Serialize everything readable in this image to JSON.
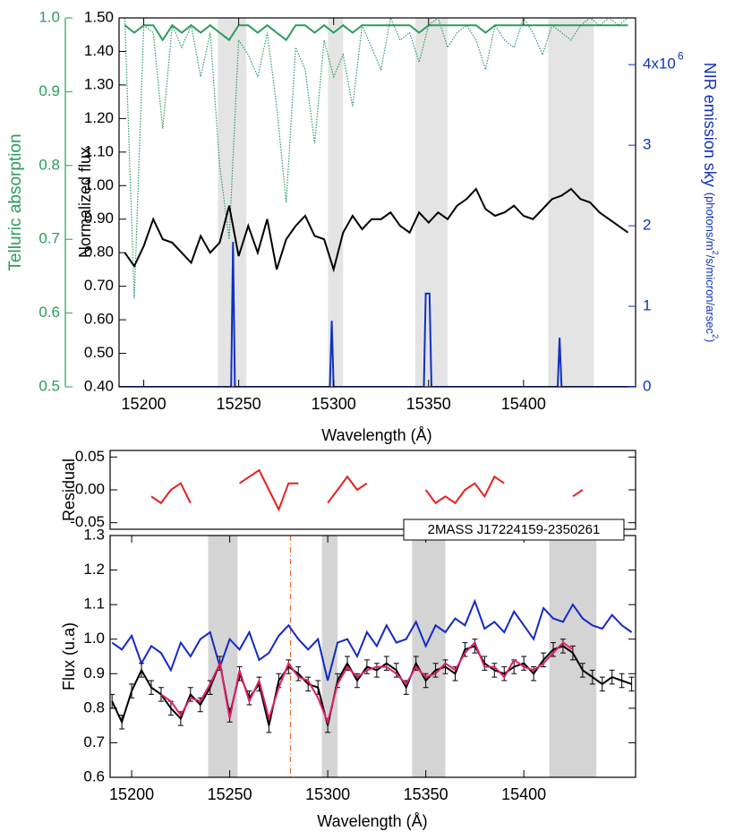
{
  "chart_data": [
    {
      "type": "line",
      "x": [
        15190,
        15195,
        15200,
        15205,
        15210,
        15215,
        15220,
        15225,
        15230,
        15235,
        15240,
        15245,
        15250,
        15255,
        15260,
        15265,
        15270,
        15275,
        15280,
        15285,
        15290,
        15295,
        15300,
        15305,
        15310,
        15315,
        15320,
        15325,
        15330,
        15335,
        15340,
        15345,
        15350,
        15355,
        15360,
        15365,
        15370,
        15375,
        15380,
        15385,
        15390,
        15395,
        15400,
        15405,
        15410,
        15415,
        15420,
        15425,
        15430,
        15435,
        15440,
        15445,
        15450,
        15455
      ],
      "xlim": [
        15187,
        15459
      ],
      "xticks": [
        15200,
        15250,
        15300,
        15350,
        15400
      ],
      "xlabel": "Wavelength (Å)",
      "ylabel": "Normalized flux",
      "ylim": [
        0.4,
        1.5
      ],
      "yticks": [
        {
          "value": 0.4,
          "label": "0.40"
        },
        {
          "value": 0.5,
          "label": "0.50"
        },
        {
          "value": 0.6,
          "label": "0.60"
        },
        {
          "value": 0.7,
          "label": "0.70"
        },
        {
          "value": 0.8,
          "label": "0.80"
        },
        {
          "value": 0.9,
          "label": "0.90"
        },
        {
          "value": 1,
          "label": "1.00"
        },
        {
          "value": 1.1,
          "label": "1.10"
        },
        {
          "value": 1.2,
          "label": "1.20"
        },
        {
          "value": 1.3,
          "label": "1.30"
        },
        {
          "value": 1.4,
          "label": "1.40"
        },
        {
          "value": 1.5,
          "label": "1.50"
        }
      ],
      "y2label": "NIR emission sky",
      "y2label_units": [
        "(photons/m",
        "2",
        "/s/micron/arsec",
        "2",
        ")"
      ],
      "y2lim": [
        0,
        4580000
      ],
      "y2ticks": [
        0,
        {
          "value": 1000000,
          "label": "1"
        },
        {
          "value": 2000000,
          "label": "2"
        },
        {
          "value": 3000000,
          "label": "3"
        },
        {
          "value": 4000000,
          "label": "4x10",
          "exponent": "6"
        }
      ],
      "y3label": "Telluric absorption",
      "y3lim": [
        0.5,
        1.0
      ],
      "y3ticks": [
        0.5,
        0.6,
        0.7,
        0.8,
        0.9,
        {
          "value": 1,
          "label": "1.0"
        }
      ],
      "bands": [
        [
          15239,
          15254
        ],
        [
          15297,
          15305
        ],
        [
          15343,
          15360
        ],
        [
          15413,
          15437
        ]
      ],
      "band_color": "#e4e4e4",
      "series": [
        {
          "color": "#2a9d5c",
          "style": "dotted",
          "axis": "y3",
          "values": [
            1.0,
            0.62,
            0.99,
            0.98,
            0.85,
            0.99,
            0.96,
            0.99,
            0.92,
            0.98,
            0.8,
            0.7,
            0.97,
            0.95,
            0.92,
            0.98,
            0.88,
            0.75,
            0.96,
            0.93,
            0.83,
            0.97,
            0.92,
            0.95,
            0.88,
            0.99,
            0.96,
            0.93,
            1.0,
            0.97,
            0.98,
            0.94,
            0.99,
            1.0,
            0.96,
            0.98,
            0.99,
            0.97,
            0.93,
            0.99,
            0.97,
            0.96,
            1.0,
            0.98,
            0.95,
            0.99,
            0.98,
            0.97,
            0.99,
            1.0,
            0.99,
            1.0,
            0.99,
            1.0
          ]
        },
        {
          "color": "#2a9d5c",
          "axis": "y3",
          "values": [
            0.99,
            0.98,
            0.99,
            0.99,
            0.97,
            0.99,
            0.98,
            0.99,
            0.98,
            0.99,
            0.98,
            0.97,
            0.99,
            0.99,
            0.98,
            0.99,
            0.98,
            0.97,
            0.99,
            0.99,
            0.98,
            0.99,
            0.98,
            0.99,
            0.98,
            0.99,
            0.99,
            0.99,
            0.99,
            0.99,
            0.99,
            0.98,
            0.99,
            0.99,
            0.99,
            0.99,
            0.99,
            0.99,
            0.98,
            0.99,
            0.99,
            0.99,
            0.99,
            0.99,
            0.99,
            0.99,
            0.99,
            0.99,
            0.99,
            0.99,
            0.99,
            0.99,
            0.99,
            0.99
          ]
        },
        {
          "color": "#000000",
          "values": [
            0.8,
            0.76,
            0.82,
            0.9,
            0.84,
            0.83,
            0.8,
            0.77,
            0.85,
            0.8,
            0.83,
            0.94,
            0.79,
            0.88,
            0.8,
            0.9,
            0.75,
            0.84,
            0.88,
            0.91,
            0.85,
            0.84,
            0.75,
            0.86,
            0.91,
            0.87,
            0.9,
            0.9,
            0.92,
            0.88,
            0.86,
            0.92,
            0.89,
            0.92,
            0.9,
            0.94,
            0.96,
            0.99,
            0.93,
            0.91,
            0.92,
            0.94,
            0.91,
            0.9,
            0.93,
            0.96,
            0.97,
            0.99,
            0.96,
            0.95,
            0.92,
            0.9,
            0.88,
            0.86
          ]
        },
        {
          "color": "#1030c0",
          "axis": "y2",
          "x": [
            15187,
            15246,
            15247,
            15248,
            15298,
            15299,
            15300,
            15347.5,
            15348.5,
            15350.5,
            15351.5,
            15418,
            15419,
            15420,
            15459
          ],
          "values": [
            0,
            0,
            1800000,
            0,
            0,
            820000,
            0,
            0,
            1160000,
            1160000,
            0,
            0,
            610000,
            0,
            0
          ]
        }
      ]
    },
    {
      "type": "line",
      "ylabel": "Residual",
      "x": [
        15190,
        15195,
        15200,
        15205,
        15210,
        15215,
        15220,
        15225,
        15230,
        15235,
        15240,
        15245,
        15250,
        15255,
        15260,
        15265,
        15270,
        15275,
        15280,
        15285,
        15290,
        15295,
        15300,
        15305,
        15310,
        15315,
        15320,
        15325,
        15330,
        15335,
        15340,
        15345,
        15350,
        15355,
        15360,
        15365,
        15370,
        15375,
        15380,
        15385,
        15390,
        15395,
        15400,
        15405,
        15410,
        15415,
        15420,
        15425,
        15430,
        15435,
        15440,
        15445,
        15450,
        15455
      ],
      "xlim": [
        15189,
        15457
      ],
      "ylim": [
        -0.06,
        0.06
      ],
      "yticks": [
        {
          "value": -0.05,
          "label": "-0.05"
        },
        {
          "value": 0,
          "label": "0.00"
        },
        {
          "value": 0.05,
          "label": "0.05"
        }
      ],
      "series": [
        {
          "color": "#e82020",
          "values": [
            null,
            null,
            null,
            null,
            -0.01,
            -0.02,
            0.0,
            0.01,
            -0.02,
            null,
            null,
            null,
            null,
            0.01,
            0.02,
            0.03,
            0.0,
            -0.03,
            0.01,
            0.01,
            null,
            null,
            -0.02,
            0.0,
            0.02,
            0.0,
            0.01,
            null,
            null,
            null,
            null,
            null,
            0.0,
            -0.02,
            -0.01,
            -0.02,
            0.0,
            0.01,
            -0.01,
            0.02,
            0.01,
            null,
            null,
            null,
            null,
            null,
            null,
            -0.01,
            0.0,
            null,
            null,
            null,
            null,
            null
          ]
        }
      ]
    },
    {
      "type": "line",
      "annotation": "2MASS J17224159-2350261",
      "x": [
        15190,
        15195,
        15200,
        15205,
        15210,
        15215,
        15220,
        15225,
        15230,
        15235,
        15240,
        15245,
        15250,
        15255,
        15260,
        15265,
        15270,
        15275,
        15280,
        15285,
        15290,
        15295,
        15300,
        15305,
        15310,
        15315,
        15320,
        15325,
        15330,
        15335,
        15340,
        15345,
        15350,
        15355,
        15360,
        15365,
        15370,
        15375,
        15380,
        15385,
        15390,
        15395,
        15400,
        15405,
        15410,
        15415,
        15420,
        15425,
        15430,
        15435,
        15440,
        15445,
        15450,
        15455
      ],
      "xlim": [
        15189,
        15457
      ],
      "xticks": [
        15200,
        15250,
        15300,
        15350,
        15400
      ],
      "xlabel": "Wavelength (Å)",
      "ylabel": "Flux (u.a)",
      "ylim": [
        0.6,
        1.3
      ],
      "yticks": [
        0.6,
        0.7,
        0.8,
        0.9,
        {
          "value": 1,
          "label": "1.0"
        },
        1.1,
        1.2,
        1.3
      ],
      "bands": [
        [
          15239,
          15254
        ],
        [
          15297,
          15305
        ],
        [
          15343,
          15360
        ],
        [
          15413,
          15437
        ]
      ],
      "band_color": "#d4d4d4",
      "marker_x": 15281,
      "marker_color": "#e86a2a",
      "series": [
        {
          "color": "#1428c8",
          "values": [
            0.99,
            0.97,
            1.01,
            0.93,
            0.98,
            0.96,
            0.91,
            0.99,
            0.95,
            1.0,
            1.02,
            0.92,
            1.0,
            0.97,
            1.02,
            0.94,
            0.96,
            1.01,
            1.04,
            1.0,
            0.97,
            1.0,
            0.88,
            0.99,
            1.0,
            0.95,
            1.02,
            0.98,
            1.04,
            0.99,
            1.0,
            1.05,
            0.98,
            1.04,
            1.02,
            1.06,
            1.04,
            1.11,
            1.03,
            1.05,
            1.02,
            1.08,
            1.04,
            1.0,
            1.09,
            1.06,
            1.05,
            1.1,
            1.06,
            1.04,
            1.03,
            1.07,
            1.04,
            1.02
          ]
        },
        {
          "color": "#000000",
          "error": 0.02,
          "values": [
            0.82,
            0.76,
            0.85,
            0.91,
            0.86,
            0.84,
            0.8,
            0.77,
            0.84,
            0.81,
            0.86,
            0.93,
            0.78,
            0.9,
            0.83,
            0.87,
            0.75,
            0.88,
            0.92,
            0.9,
            0.87,
            0.86,
            0.75,
            0.88,
            0.93,
            0.88,
            0.92,
            0.91,
            0.93,
            0.91,
            0.86,
            0.93,
            0.88,
            0.91,
            0.92,
            0.9,
            0.97,
            0.98,
            0.93,
            0.91,
            0.9,
            0.92,
            0.93,
            0.9,
            0.94,
            0.97,
            0.98,
            0.96,
            0.91,
            0.89,
            0.87,
            0.89,
            0.88,
            0.87
          ]
        },
        {
          "color": "#e0206a",
          "values": [
            null,
            null,
            null,
            null,
            null,
            0.84,
            0.82,
            0.78,
            0.83,
            0.82,
            0.87,
            0.93,
            0.77,
            0.91,
            0.82,
            0.88,
            0.77,
            0.86,
            0.93,
            0.89,
            0.88,
            0.83,
            0.76,
            0.87,
            0.92,
            0.89,
            0.91,
            0.92,
            0.92,
            0.9,
            0.87,
            0.92,
            0.89,
            0.9,
            0.93,
            0.91,
            0.96,
            0.99,
            0.92,
            0.92,
            0.89,
            0.94,
            0.92,
            0.91,
            0.93,
            0.96,
            0.99,
            0.97,
            null,
            null,
            null,
            null,
            null,
            null
          ]
        }
      ]
    }
  ]
}
